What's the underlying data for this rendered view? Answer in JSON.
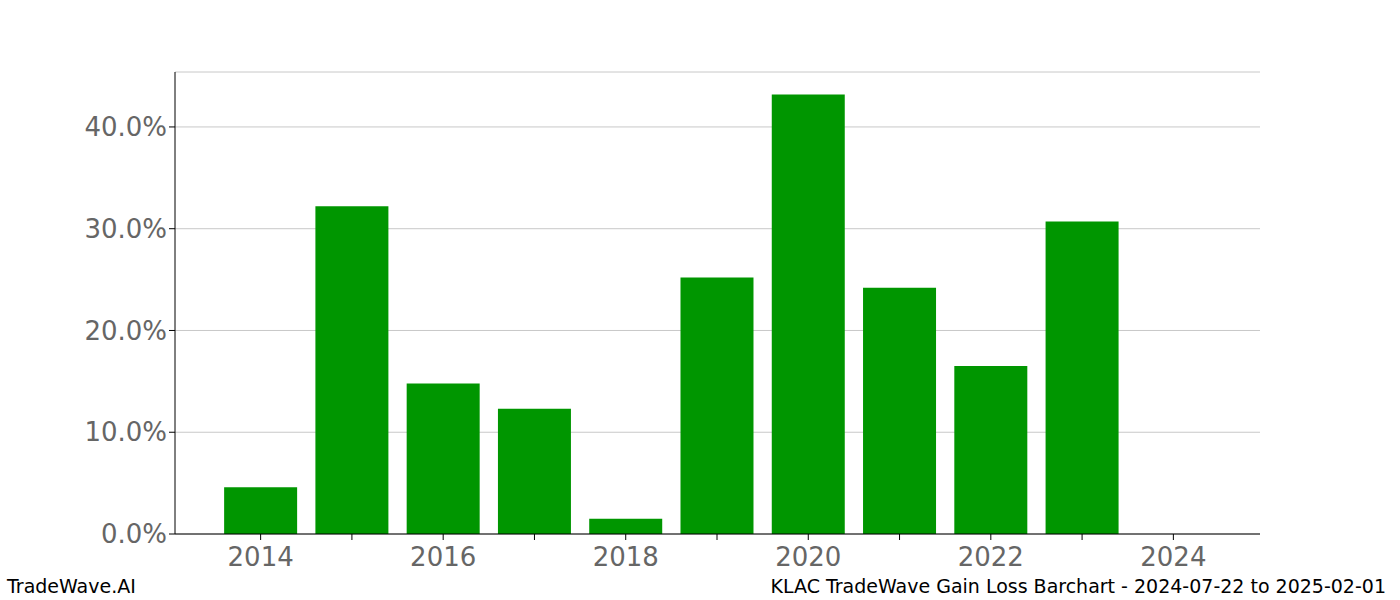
{
  "chart_data": {
    "type": "bar",
    "title": "KLAC TradeWave Gain Loss Barchart - 2024-07-22 to 2025-02-01",
    "source": "TradeWave.AI",
    "categories": [
      "2014",
      null,
      "2016",
      null,
      "2018",
      null,
      "2020",
      null,
      "2022",
      null,
      "2024"
    ],
    "values": [
      4.6,
      32.2,
      14.8,
      12.3,
      1.5,
      25.2,
      43.2,
      24.2,
      16.5,
      30.7,
      null
    ],
    "color": "#009600",
    "ylim": [
      0,
      45.4
    ],
    "yticks": [
      {
        "value": 0,
        "label": "0.0%"
      },
      {
        "value": 10,
        "label": "10.0%"
      },
      {
        "value": 20,
        "label": "20.0%"
      },
      {
        "value": 30,
        "label": "30.0%"
      },
      {
        "value": 40,
        "label": "40.0%"
      }
    ],
    "grid": true
  }
}
